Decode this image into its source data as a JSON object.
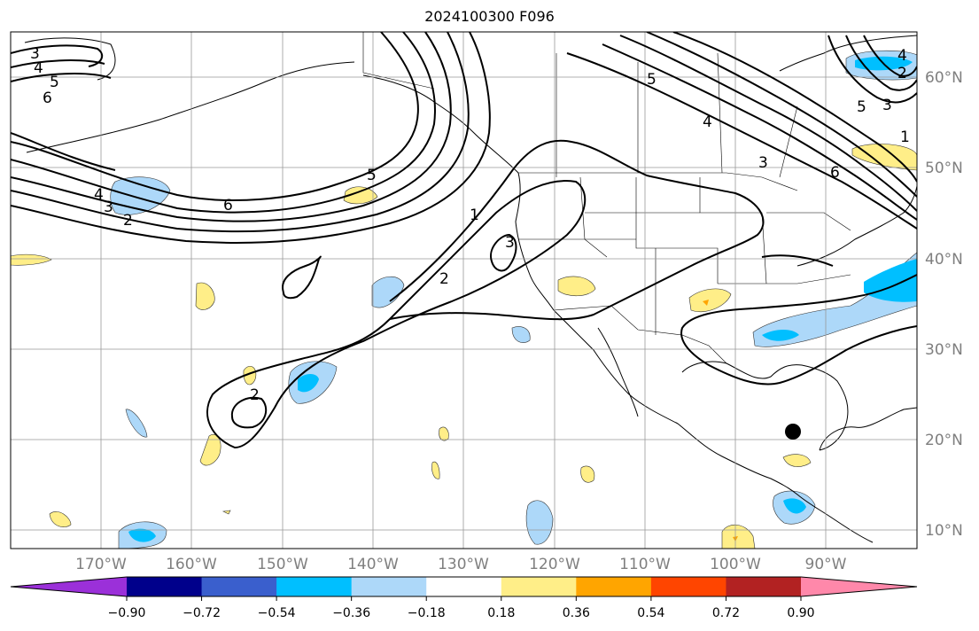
{
  "title": "2024100300 F096",
  "latitude_labels": [
    "60°N",
    "50°N",
    "40°N",
    "30°N",
    "20°N",
    "10°N"
  ],
  "longitude_labels": [
    "170°W",
    "160°W",
    "150°W",
    "140°W",
    "130°W",
    "120°W",
    "110°W",
    "100°W",
    "90°W"
  ],
  "contour_labels": [
    "3",
    "4",
    "5",
    "6",
    "6",
    "5",
    "4",
    "3",
    "2",
    "1",
    "2",
    "3",
    "2",
    "5",
    "4",
    "3",
    "6",
    "5",
    "3",
    "4",
    "2",
    "1"
  ],
  "colorbar": {
    "ticks": [
      "−0.90",
      "−0.72",
      "−0.54",
      "−0.36",
      "−0.18",
      "0.18",
      "0.36",
      "0.54",
      "0.72",
      "0.90"
    ],
    "colors": [
      "#9b30d9",
      "#00008b",
      "#3a5fcd",
      "#00bfff",
      "#add8f9",
      "#ffffff",
      "#ffee88",
      "#ffa500",
      "#ff4500",
      "#b22222",
      "#ff88aa"
    ]
  },
  "marker": "storm-location-dot"
}
